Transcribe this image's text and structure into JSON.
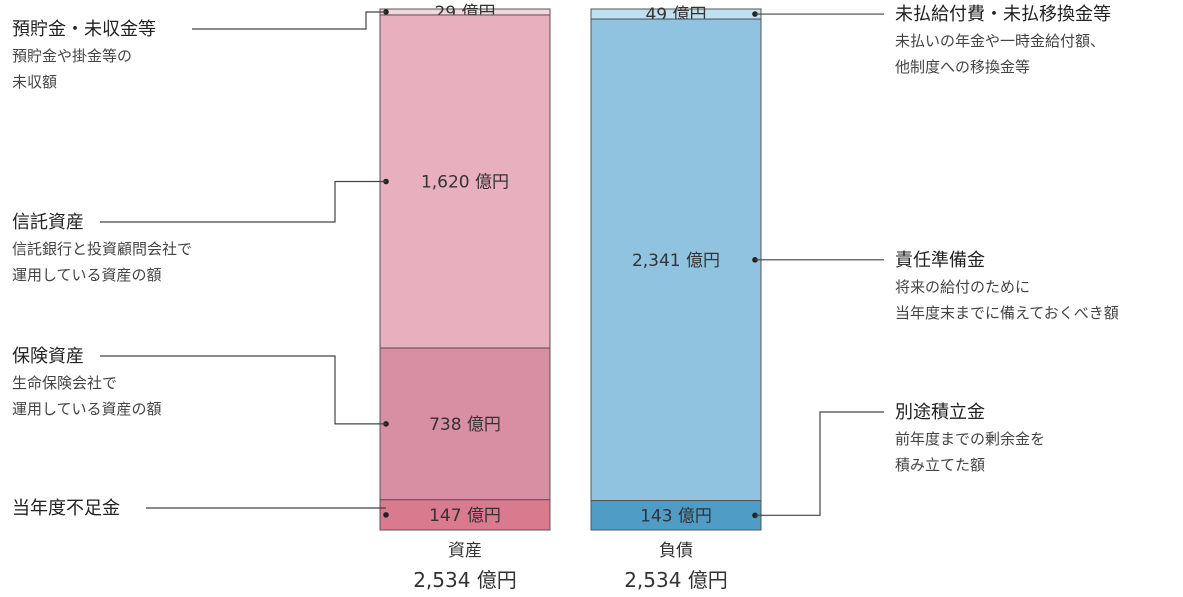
{
  "chart_data": {
    "type": "stacked-bar",
    "unit": "億円",
    "columns": [
      {
        "name": "資産",
        "total_label": "2,534 億円",
        "segments": [
          {
            "value": 29,
            "label": "29 億円",
            "color": "#f3d6de",
            "title": "預貯金・未収金等",
            "desc": [
              "預貯金や掛金等の",
              "未収額"
            ]
          },
          {
            "value": 1620,
            "label": "1,620 億円",
            "color": "#e8b0bf",
            "title": "信託資産",
            "desc": [
              "信託銀行と投資顧問会社で",
              "運用している資産の額"
            ]
          },
          {
            "value": 738,
            "label": "738 億円",
            "color": "#d98fa3",
            "title": "保険資産",
            "desc": [
              "生命保険会社で",
              "運用している資産の額"
            ]
          },
          {
            "value": 147,
            "label": "147 億円",
            "color": "#d97a8f",
            "title": "当年度不足金",
            "desc": []
          }
        ]
      },
      {
        "name": "負債",
        "total_label": "2,534 億円",
        "segments": [
          {
            "value": 49,
            "label": "49 億円",
            "color": "#bfe0f0",
            "title": "未払給付費・未払移換金等",
            "desc": [
              "未払いの年金や一時金給付額、",
              "他制度への移換金等"
            ]
          },
          {
            "value": 2341,
            "label": "2,341 億円",
            "color": "#8fc3e0",
            "title": "責任準備金",
            "desc": [
              "将来の給付のために",
              "当年度末までに備えておくべき額"
            ]
          },
          {
            "value": 143,
            "label": "143 億円",
            "color": "#4f9cc7",
            "title": "別途積立金",
            "desc": [
              "前年度までの剰余金を",
              "積み立てた額"
            ]
          }
        ]
      }
    ]
  }
}
